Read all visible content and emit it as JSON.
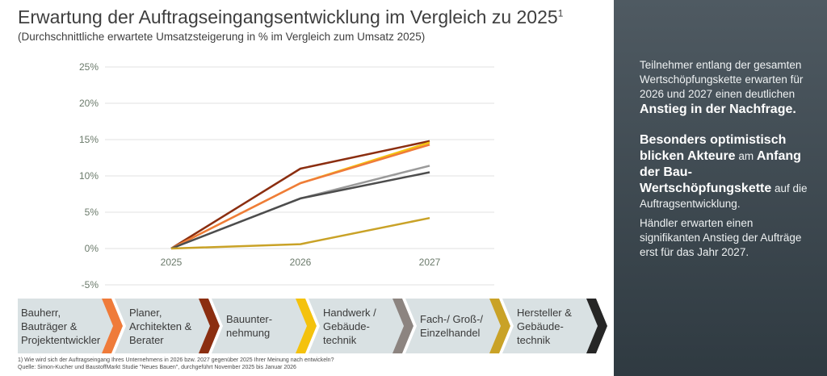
{
  "header": {
    "title": "Erwartung der Auftragseingangsentwicklung im Vergleich zu 2025",
    "title_superscript": "1",
    "subtitle": "(Durchschnittliche erwartete Umsatzsteigerung in % im Vergleich zum Umsatz 2025)"
  },
  "chart_data": {
    "type": "line",
    "x": [
      "2025",
      "2026",
      "2027"
    ],
    "ylim": [
      -5,
      25
    ],
    "yticks": [
      "25%",
      "20%",
      "15%",
      "10%",
      "5%",
      "0%",
      "-5%"
    ],
    "ytick_values": [
      25,
      20,
      15,
      10,
      5,
      0,
      -5
    ],
    "grid": true,
    "legend": "none",
    "series": [
      {
        "values": [
          0,
          11.0,
          14.8
        ],
        "color": "#8b2e10"
      },
      {
        "values": [
          0,
          9.0,
          14.6
        ],
        "color": "#f4c20d"
      },
      {
        "values": [
          0,
          9.0,
          14.3
        ],
        "color": "#ef7b3a"
      },
      {
        "values": [
          0,
          6.9,
          11.4
        ],
        "color": "#9a9a9a"
      },
      {
        "values": [
          0,
          6.9,
          10.5
        ],
        "color": "#4d4d4d"
      },
      {
        "values": [
          0,
          0.6,
          4.2
        ],
        "color": "#c9a227"
      }
    ]
  },
  "stages": [
    {
      "label": "Bauherr,\nBauträger &\nProjektentwickler",
      "accent": "#ef7b3a"
    },
    {
      "label": "Planer,\nArchitekten &\nBerater",
      "accent": "#8b2e10"
    },
    {
      "label": "Bauunter-\nnehmung",
      "accent": "#f4c20d"
    },
    {
      "label": "Handwerk /\nGebäude-\ntechnik",
      "accent": "#8c8480"
    },
    {
      "label": "Fach-/ Groß-/\nEinzelhandel",
      "accent": "#c9a227"
    },
    {
      "label": "Hersteller &\nGebäude-\ntechnik",
      "accent": "#262626"
    }
  ],
  "footnote": {
    "line1": "1) Wie wird sich der Auftragseingang Ihres Unternehmens in 2026 bzw. 2027 gegenüber 2025 Ihrer Meinung nach entwickeln?",
    "line2": "Quelle: Simon-Kucher und BaustoffMarkt Studie \"Neues Bauen\", durchgeführt November 2025 bis Januar 2026"
  },
  "sidebar": {
    "p1_text": "Teilnehmer entlang der gesamten Wertschöpfungskette erwarten für 2026 und 2027 einen deutlichen ",
    "p1_bold": "Anstieg in der Nachfrage.",
    "p2_bold1": "Besonders optimistisch blicken Akteure",
    "p2_text1": " am ",
    "p2_bold2": "Anfang der Bau-Wertschöpfungskette",
    "p2_text2": " auf die Auftragsentwicklung.",
    "p3_text": "Händler erwarten einen signifikanten Anstieg der Aufträge erst für das Jahr 2027.",
    "bg_color": "#3a454c"
  }
}
